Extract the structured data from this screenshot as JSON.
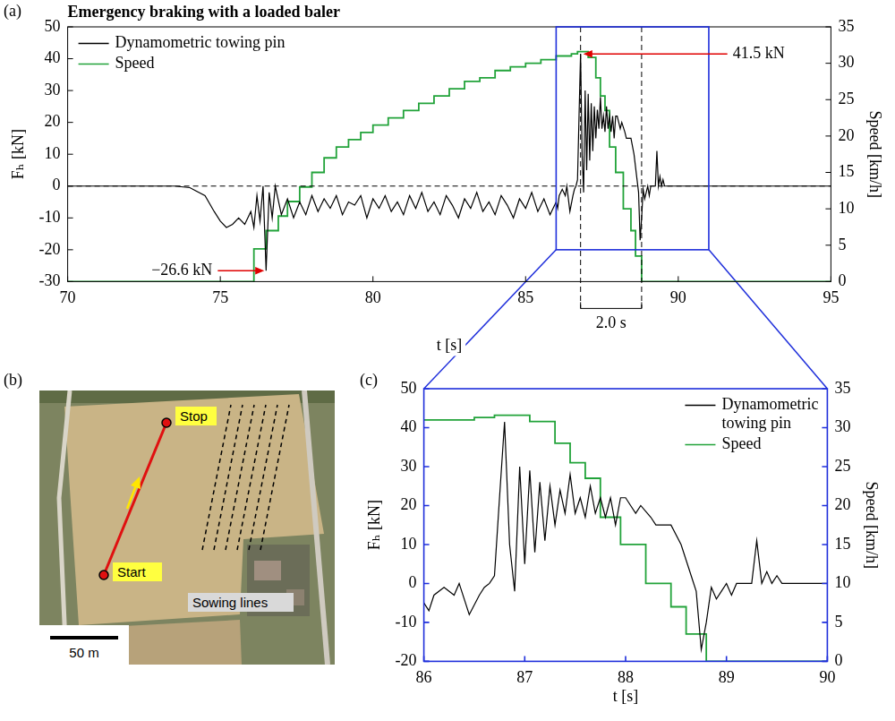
{
  "chart_data": [
    {
      "panel": "(a)",
      "type": "line",
      "title": "Emergency braking with a loaded baler",
      "x_label": "t [s]",
      "y_label": "Fₕ [kN]",
      "y2_label": "Speed [km/h]",
      "xlim": [
        70,
        95
      ],
      "xticks": [
        70,
        75,
        80,
        85,
        90,
        95
      ],
      "ylim": [
        -30,
        50
      ],
      "yticks": [
        -30,
        -20,
        -10,
        0,
        10,
        20,
        30,
        40,
        50
      ],
      "y2lim": [
        0,
        35
      ],
      "y2ticks": [
        0,
        5,
        10,
        15,
        20,
        25,
        30,
        35
      ],
      "grid": false,
      "legend": "upper left",
      "series": [
        {
          "name": "Dynamometric towing pin",
          "color": "#000000",
          "line_style": "solid",
          "x": [
            70,
            73.5,
            74,
            74.5,
            74.8,
            75,
            75.2,
            75.4,
            75.6,
            75.8,
            76,
            76.1,
            76.2,
            76.3,
            76.4,
            76.5,
            76.6,
            76.7,
            76.8,
            77,
            77.2,
            77.4,
            77.6,
            77.8,
            78,
            78.2,
            78.4,
            78.6,
            78.8,
            79,
            79.2,
            79.4,
            79.6,
            79.8,
            80,
            80.2,
            80.4,
            80.6,
            80.8,
            81,
            81.2,
            81.4,
            81.6,
            81.8,
            82,
            82.2,
            82.4,
            82.6,
            82.8,
            83,
            83.2,
            83.4,
            83.6,
            83.8,
            84,
            84.2,
            84.4,
            84.6,
            84.8,
            85,
            85.2,
            85.4,
            85.6,
            85.8,
            86,
            86.05,
            86.1,
            86.2,
            86.3,
            86.35,
            86.45,
            86.55,
            86.6,
            86.65,
            86.7,
            86.75,
            86.8,
            86.85,
            86.9,
            86.95,
            87,
            87.05,
            87.1,
            87.15,
            87.2,
            87.25,
            87.3,
            87.35,
            87.4,
            87.45,
            87.5,
            87.55,
            87.6,
            87.65,
            87.7,
            87.75,
            87.8,
            87.85,
            87.9,
            87.95,
            88,
            88.05,
            88.1,
            88.15,
            88.25,
            88.3,
            88.45,
            88.55,
            88.65,
            88.7,
            88.75,
            88.8,
            88.85,
            88.9,
            88.95,
            89,
            89.05,
            89.1,
            89.25,
            89.3,
            89.35,
            89.4,
            89.45,
            89.5,
            89.55,
            90,
            95
          ],
          "values": [
            0,
            0,
            -0.5,
            -3,
            -8,
            -11,
            -13,
            -12,
            -10,
            -12,
            -8,
            -13,
            -3,
            -11,
            0,
            -26.6,
            -2,
            -10,
            0,
            -9,
            -4,
            -10,
            -5,
            -9,
            -3,
            -8,
            -4,
            -7,
            -3,
            -9,
            -5,
            -6,
            -3,
            -10,
            -4,
            -7,
            -3,
            -8,
            -5,
            -9,
            -3,
            -7,
            -2,
            -8,
            -5,
            -9,
            -3,
            -6,
            -10,
            -4,
            -7,
            -2,
            -8,
            -5,
            -9,
            -3,
            -6,
            -10,
            -4,
            -7,
            -2,
            -8,
            -4,
            -9,
            -5,
            -7,
            -3,
            -1,
            -3,
            0,
            -8,
            -3,
            -1,
            0,
            2,
            22,
            41.5,
            10,
            -2,
            30,
            5,
            29,
            8,
            26,
            11,
            25,
            15,
            24,
            18,
            28,
            18,
            22,
            17,
            25,
            18,
            22,
            17,
            22,
            15,
            22,
            22,
            20,
            18,
            20,
            17,
            15,
            15,
            10,
            2,
            -2,
            -17,
            -10,
            -1,
            -4,
            -2,
            0,
            -3,
            0,
            0,
            11,
            0,
            3,
            0,
            2,
            0,
            0,
            0
          ]
        },
        {
          "name": "Speed",
          "color": "#22a33a",
          "axis": "y2",
          "line_style": "steps",
          "x": [
            70,
            76.1,
            76.5,
            76.9,
            77.2,
            77.6,
            78,
            78.4,
            78.8,
            79.2,
            79.6,
            80,
            80.5,
            81,
            81.5,
            82,
            82.5,
            83,
            83.5,
            84,
            84.5,
            85,
            85.5,
            86,
            86.5,
            86.7,
            87.05,
            87.3,
            87.45,
            87.6,
            87.75,
            87.95,
            88.2,
            88.45,
            88.6,
            88.8,
            95
          ],
          "values": [
            0,
            4.5,
            7,
            9,
            11,
            13,
            15,
            17,
            18.5,
            19.5,
            20.5,
            21.5,
            22.5,
            23.5,
            24.5,
            25.5,
            26.5,
            27.5,
            28,
            29,
            29.5,
            30,
            30.5,
            31,
            31.3,
            31.6,
            30.8,
            28,
            25.5,
            23.5,
            18.5,
            15,
            10,
            7,
            3.5,
            0,
            0
          ]
        }
      ],
      "annotations": [
        {
          "text": "41.5 kN",
          "x": 86.8,
          "y": 41.5
        },
        {
          "text": "−26.6 kN",
          "x": 76.5,
          "y": -26.6
        }
      ],
      "hlines": [
        0
      ],
      "vlines": [
        86.8,
        88.8
      ],
      "bracket": {
        "from": 86.8,
        "to": 88.8,
        "label": "2.0 s"
      },
      "zoom_box": {
        "xlim": [
          86,
          91
        ],
        "ylim": [
          -20,
          50
        ]
      }
    },
    {
      "panel": "(c)",
      "type": "line",
      "x_label": "t [s]",
      "y_label": "Fₕ [kN]",
      "y2_label": "Speed [km/h]",
      "xlim": [
        86,
        90
      ],
      "xticks": [
        86,
        87,
        88,
        89,
        90
      ],
      "ylim": [
        -20,
        50
      ],
      "yticks": [
        -20,
        -10,
        0,
        10,
        20,
        30,
        40,
        50
      ],
      "y2lim": [
        0,
        35
      ],
      "y2ticks": [
        0,
        5,
        10,
        15,
        20,
        25,
        30,
        35
      ],
      "grid": false,
      "legend": "upper right",
      "series": [
        {
          "name": "Dynamometric towing pin",
          "color": "#000000",
          "line_style": "solid",
          "x": [
            86,
            86.05,
            86.1,
            86.2,
            86.3,
            86.35,
            86.45,
            86.55,
            86.6,
            86.65,
            86.7,
            86.75,
            86.8,
            86.85,
            86.9,
            86.95,
            87,
            87.05,
            87.1,
            87.15,
            87.2,
            87.25,
            87.3,
            87.35,
            87.4,
            87.45,
            87.5,
            87.55,
            87.6,
            87.65,
            87.7,
            87.75,
            87.8,
            87.85,
            87.9,
            87.95,
            88,
            88.05,
            88.1,
            88.15,
            88.25,
            88.3,
            88.45,
            88.55,
            88.65,
            88.7,
            88.75,
            88.8,
            88.85,
            88.9,
            88.95,
            89,
            89.05,
            89.1,
            89.25,
            89.3,
            89.35,
            89.4,
            89.45,
            89.5,
            89.55,
            90
          ],
          "values": [
            -5,
            -7,
            -3,
            -1,
            -3,
            0,
            -8,
            -3,
            -1,
            0,
            2,
            22,
            41.5,
            10,
            -2,
            30,
            5,
            29,
            8,
            26,
            11,
            25,
            15,
            24,
            18,
            28,
            18,
            22,
            17,
            25,
            18,
            22,
            17,
            22,
            15,
            22,
            22,
            20,
            18,
            20,
            17,
            15,
            15,
            10,
            2,
            -2,
            -17,
            -10,
            -1,
            -4,
            -2,
            0,
            -3,
            0,
            0,
            11,
            0,
            3,
            0,
            2,
            0,
            0
          ]
        },
        {
          "name": "Speed",
          "color": "#22a33a",
          "axis": "y2",
          "line_style": "steps",
          "x": [
            86,
            86.5,
            86.7,
            87.05,
            87.3,
            87.45,
            87.6,
            87.75,
            87.95,
            88.2,
            88.45,
            88.6,
            88.8,
            90
          ],
          "values": [
            31,
            31.3,
            31.6,
            30.8,
            28,
            25.5,
            23.5,
            18.5,
            15,
            10,
            7,
            3.5,
            0,
            0
          ]
        }
      ]
    }
  ],
  "map": {
    "panel": "(b)",
    "labels": {
      "start": "Start",
      "stop": "Stop",
      "sowing": "Sowing lines"
    },
    "scale": "50 m"
  }
}
